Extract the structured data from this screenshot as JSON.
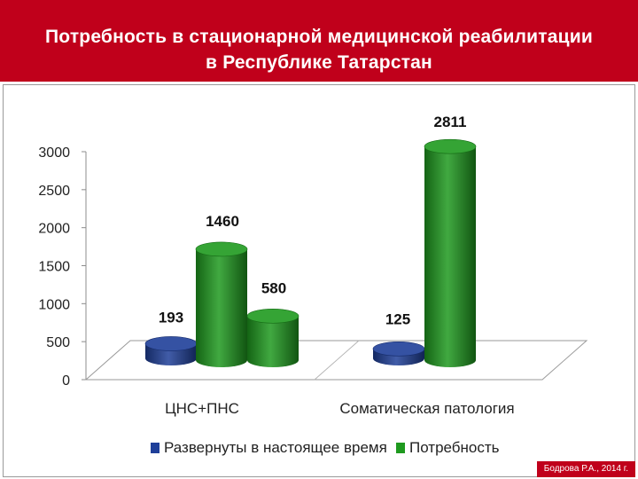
{
  "header": {
    "title_line1": "Потребность в стационарной медицинской  реабилитации",
    "title_line2": "в  Республике Татарстан"
  },
  "footer": {
    "author": "Бодрова Р.А.,  2014 г."
  },
  "colors": {
    "header_bg": "#c0001b",
    "series_blue": "#1f3f99",
    "series_green": "#1f9a1f"
  },
  "chart_data": {
    "type": "bar",
    "categories": [
      "ЦНС+ПНС",
      "Соматическая патология"
    ],
    "series": [
      {
        "name": "Развернуты в настоящее время",
        "values": [
          193,
          125
        ],
        "color": "#1f3f99"
      },
      {
        "name": "Потребность",
        "values": [
          1460,
          2811
        ],
        "color": "#1f9a1f"
      }
    ],
    "data_labels": [
      [
        "193",
        "125"
      ],
      [
        "1460",
        "2811"
      ]
    ],
    "data_labels_extra": [
      "580"
    ],
    "extra_value": 580,
    "ylim": [
      0,
      3000
    ],
    "yticks": [
      0,
      500,
      1000,
      1500,
      2000,
      2500,
      3000
    ],
    "legend_position": "bottom",
    "grid": false,
    "style": "3d cylinder"
  }
}
